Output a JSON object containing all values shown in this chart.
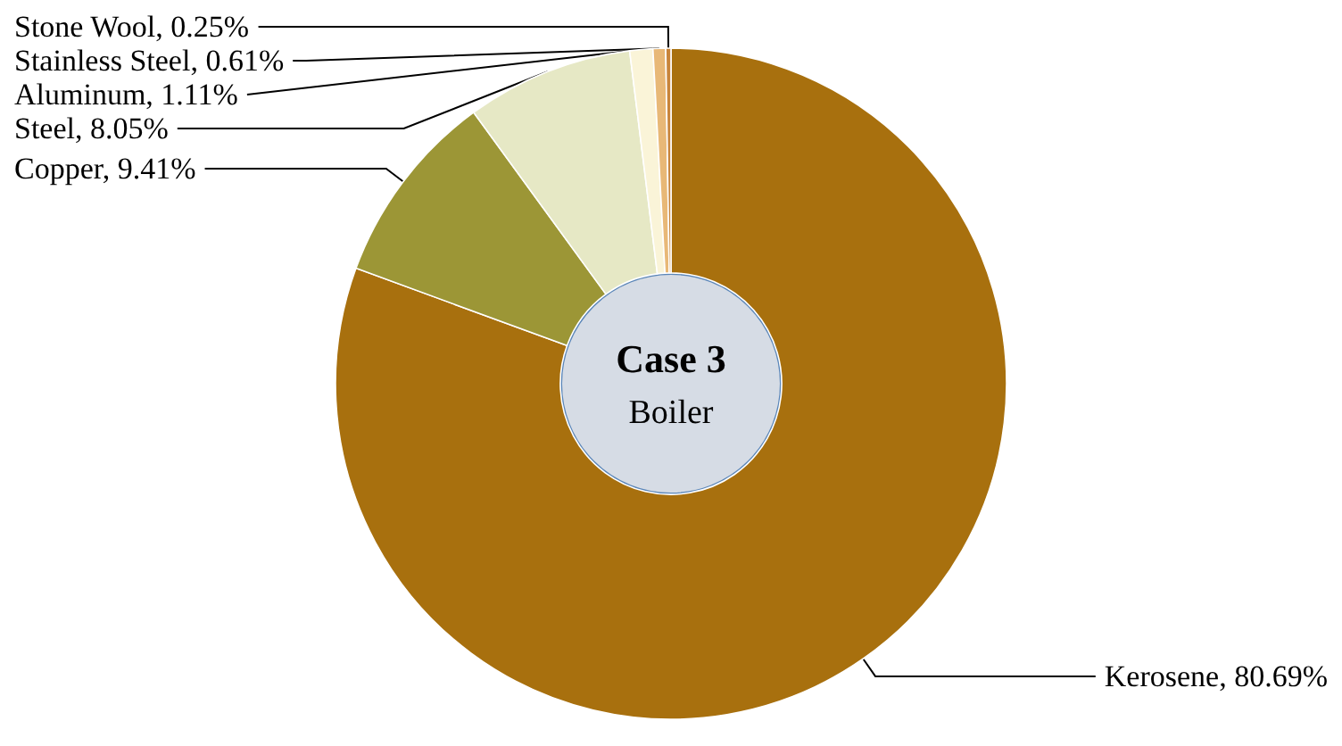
{
  "chart_data": {
    "type": "donut",
    "title": "Case 3",
    "subtitle": "Boiler",
    "categories": [
      "Kerosene",
      "Copper",
      "Steel",
      "Aluminum",
      "Stainless Steel",
      "Stone Wool"
    ],
    "values": [
      80.69,
      9.41,
      8.05,
      1.11,
      0.61,
      0.25
    ],
    "value_labels": [
      "80.69%",
      "9.41%",
      "8.05%",
      "1.11%",
      "0.61%",
      "0.25%"
    ],
    "colors": [
      "#a8700e",
      "#9c9636",
      "#e6e8c5",
      "#faf4d8",
      "#e8b877",
      "#c8843a"
    ],
    "legend": false
  }
}
